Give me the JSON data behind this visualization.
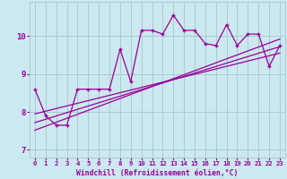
{
  "xlabel": "Windchill (Refroidissement éolien,°C)",
  "bg_color": "#cce8f0",
  "line_color": "#990099",
  "grid_color": "#aacccc",
  "xlim": [
    -0.5,
    23.5
  ],
  "ylim": [
    6.8,
    10.9
  ],
  "xticks": [
    0,
    1,
    2,
    3,
    4,
    5,
    6,
    7,
    8,
    9,
    10,
    11,
    12,
    13,
    14,
    15,
    16,
    17,
    18,
    19,
    20,
    21,
    22,
    23
  ],
  "yticks": [
    7,
    8,
    9,
    10
  ],
  "main_y": [
    8.6,
    7.9,
    7.65,
    7.65,
    8.6,
    8.6,
    8.6,
    8.6,
    9.65,
    8.8,
    10.15,
    10.15,
    10.05,
    10.55,
    10.15,
    10.15,
    9.8,
    9.75,
    10.3,
    9.75,
    10.05,
    10.05,
    9.2,
    9.75
  ],
  "line2_y": [
    7.95,
    9.55
  ],
  "line3_y": [
    7.72,
    9.72
  ],
  "line4_y": [
    7.52,
    9.92
  ]
}
